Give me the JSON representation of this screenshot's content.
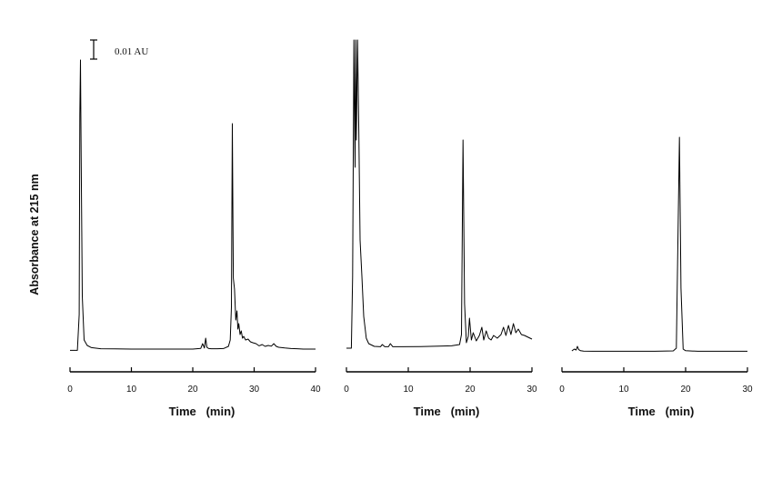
{
  "figure": {
    "ylabel": "Absorbance at 215 nm",
    "scale_bar_label": "0.01 AU"
  },
  "chart_data": [
    {
      "type": "line",
      "xlabel": "Time   (min)",
      "xlim": [
        0,
        40
      ],
      "xticks": [
        0,
        10,
        20,
        30,
        40
      ],
      "series": [
        {
          "x": [
            0,
            1.2,
            1.5,
            1.6,
            1.7,
            1.8,
            2.0,
            2.3,
            2.8,
            3.5,
            5,
            10,
            15,
            20,
            21.3,
            21.6,
            21.9,
            22.1,
            22.3,
            22.6,
            23,
            24,
            25,
            25.8,
            26.1,
            26.3,
            26.45,
            26.6,
            26.8,
            27.0,
            27.2,
            27.35,
            27.5,
            27.7,
            27.9,
            28.1,
            28.3,
            28.6,
            29,
            29.4,
            29.8,
            30.3,
            30.8,
            31.3,
            31.8,
            32.3,
            32.8,
            33.2,
            33.6,
            34,
            35,
            36,
            37,
            38,
            40
          ],
          "y": [
            0.3,
            0.3,
            20,
            130,
            160,
            110,
            30,
            6,
            3,
            1.8,
            1.2,
            1,
            1,
            1,
            1.4,
            4,
            1.6,
            7,
            2,
            1.3,
            1.2,
            1.2,
            1.3,
            2.5,
            6,
            24,
            125,
            40,
            34,
            17,
            22,
            12,
            15,
            9,
            11,
            7,
            8,
            6,
            6.5,
            5,
            4.5,
            4,
            2.8,
            3.5,
            2.5,
            3,
            2.6,
            4,
            2.5,
            2,
            1.6,
            1.3,
            1.2,
            1,
            1
          ]
        }
      ]
    },
    {
      "type": "line",
      "xlabel": "Time   (min)",
      "xlim": [
        0,
        30
      ],
      "xticks": [
        0,
        10,
        20,
        30
      ],
      "series": [
        {
          "x": [
            0,
            0.8,
            1.0,
            1.2,
            1.4,
            1.5,
            1.6,
            1.8,
            2.0,
            2.2,
            2.5,
            2.8,
            3.2,
            3.6,
            4.5,
            5.5,
            5.8,
            6.2,
            6.8,
            7.1,
            7.5,
            9,
            12,
            15,
            17,
            18.3,
            18.6,
            18.85,
            19.1,
            19.4,
            19.7,
            19.9,
            20.2,
            20.5,
            21,
            21.5,
            21.9,
            22.2,
            22.6,
            23,
            23.4,
            23.8,
            24.4,
            25,
            25.4,
            25.8,
            26.2,
            26.6,
            27,
            27.4,
            27.8,
            28.3,
            28.8,
            29.4,
            30
          ],
          "y": [
            0.5,
            0.5,
            40,
            170,
            100,
            170,
            115,
            170,
            120,
            60,
            40,
            18,
            6,
            3,
            1.5,
            1.3,
            2.5,
            1.3,
            1.3,
            3,
            1.3,
            1.3,
            1.4,
            1.6,
            1.8,
            2.5,
            8,
            115,
            25,
            3.5,
            7,
            17,
            5,
            9,
            4.5,
            7.5,
            12,
            5,
            10,
            6,
            5,
            7.5,
            6,
            8,
            12,
            7.5,
            13,
            8,
            14,
            9,
            11,
            8,
            7.5,
            6.5,
            5.5
          ]
        }
      ]
    },
    {
      "type": "line",
      "xlabel": "Time   (min)",
      "xlim": [
        0,
        30
      ],
      "xticks": [
        0,
        10,
        20,
        30
      ],
      "series": [
        {
          "x": [
            1.6,
            2.0,
            2.3,
            2.5,
            2.7,
            3.0,
            3.5,
            5,
            10,
            15,
            18,
            18.5,
            18.75,
            19.0,
            19.25,
            19.6,
            20,
            22,
            25,
            28,
            30
          ],
          "y": [
            0.5,
            1.5,
            1,
            3,
            1.2,
            0.6,
            0.4,
            0.3,
            0.3,
            0.3,
            0.5,
            2,
            60,
            118,
            35,
            1.5,
            0.6,
            0.3,
            0.3,
            0.3,
            0.3
          ]
        }
      ]
    }
  ]
}
